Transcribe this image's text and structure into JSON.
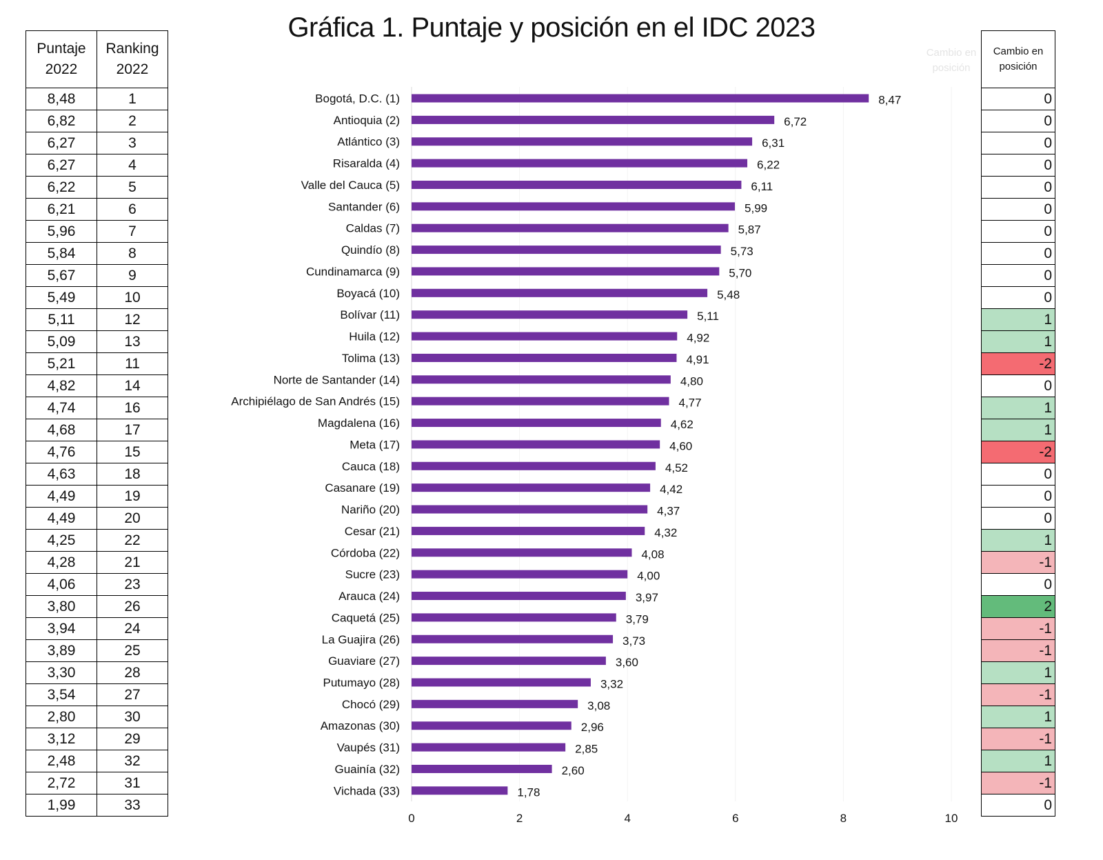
{
  "title": "Gráfica 1. Puntaje y posición en el IDC 2023",
  "left_table": {
    "header_score": [
      "Puntaje",
      "2022"
    ],
    "header_rank": [
      "Ranking",
      "2022"
    ],
    "rows": [
      [
        "8,48",
        "1"
      ],
      [
        "6,82",
        "2"
      ],
      [
        "6,27",
        "3"
      ],
      [
        "6,27",
        "4"
      ],
      [
        "6,22",
        "5"
      ],
      [
        "6,21",
        "6"
      ],
      [
        "5,96",
        "7"
      ],
      [
        "5,84",
        "8"
      ],
      [
        "5,67",
        "9"
      ],
      [
        "5,49",
        "10"
      ],
      [
        "5,11",
        "12"
      ],
      [
        "5,09",
        "13"
      ],
      [
        "5,21",
        "11"
      ],
      [
        "4,82",
        "14"
      ],
      [
        "4,74",
        "16"
      ],
      [
        "4,68",
        "17"
      ],
      [
        "4,76",
        "15"
      ],
      [
        "4,63",
        "18"
      ],
      [
        "4,49",
        "19"
      ],
      [
        "4,49",
        "20"
      ],
      [
        "4,25",
        "22"
      ],
      [
        "4,28",
        "21"
      ],
      [
        "4,06",
        "23"
      ],
      [
        "3,80",
        "26"
      ],
      [
        "3,94",
        "24"
      ],
      [
        "3,89",
        "25"
      ],
      [
        "3,30",
        "28"
      ],
      [
        "3,54",
        "27"
      ],
      [
        "2,80",
        "30"
      ],
      [
        "3,12",
        "29"
      ],
      [
        "2,48",
        "32"
      ],
      [
        "2,72",
        "31"
      ],
      [
        "1,99",
        "33"
      ]
    ]
  },
  "right_table": {
    "header": [
      "Cambio en",
      "posición"
    ],
    "ghost_header": [
      "Cambio en",
      "posición"
    ],
    "rows": [
      "0",
      "0",
      "0",
      "0",
      "0",
      "0",
      "0",
      "0",
      "0",
      "0",
      "1",
      "1",
      "-2",
      "0",
      "1",
      "1",
      "-2",
      "0",
      "0",
      "0",
      "1",
      "-1",
      "0",
      "2",
      "-1",
      "-1",
      "1",
      "-1",
      "1",
      "-1",
      "1",
      "-1",
      "0"
    ]
  },
  "colors": {
    "bar": "#7030a0",
    "neutral": "#ffffff",
    "plus_one": "#b6e0c3",
    "plus_two": "#63bb7b",
    "minus_one": "#f4b5b9",
    "minus_two": "#f46b72",
    "gridline": "#f2f2f2"
  },
  "chart_data": {
    "type": "bar",
    "orientation": "horizontal",
    "title": "Gráfica 1. Puntaje y posición en el IDC 2023",
    "xlabel": "",
    "ylabel": "",
    "xlim": [
      0,
      10
    ],
    "xticks": [
      "0",
      "2",
      "4",
      "6",
      "8",
      "10"
    ],
    "categories": [
      "Bogotá, D.C. (1)",
      "Antioquia (2)",
      "Atlántico (3)",
      "Risaralda (4)",
      "Valle del Cauca (5)",
      "Santander (6)",
      "Caldas (7)",
      "Quindío (8)",
      "Cundinamarca (9)",
      "Boyacá (10)",
      "Bolívar (11)",
      "Huila (12)",
      "Tolima (13)",
      "Norte de Santander (14)",
      "Archipiélago de San Andrés (15)",
      "Magdalena (16)",
      "Meta (17)",
      "Cauca (18)",
      "Casanare (19)",
      "Nariño (20)",
      "Cesar (21)",
      "Córdoba (22)",
      "Sucre (23)",
      "Arauca (24)",
      "Caquetá (25)",
      "La Guajira (26)",
      "Guaviare (27)",
      "Putumayo (28)",
      "Chocó (29)",
      "Amazonas (30)",
      "Vaupés (31)",
      "Guainía (32)",
      "Vichada (33)"
    ],
    "values": [
      8.47,
      6.72,
      6.31,
      6.22,
      6.11,
      5.99,
      5.87,
      5.73,
      5.7,
      5.48,
      5.11,
      4.92,
      4.91,
      4.8,
      4.77,
      4.62,
      4.6,
      4.52,
      4.42,
      4.37,
      4.32,
      4.08,
      4.0,
      3.97,
      3.79,
      3.73,
      3.6,
      3.32,
      3.08,
      2.96,
      2.85,
      2.6,
      1.78
    ],
    "value_labels": [
      "8,47",
      "6,72",
      "6,31",
      "6,22",
      "6,11",
      "5,99",
      "5,87",
      "5,73",
      "5,70",
      "5,48",
      "5,11",
      "4,92",
      "4,91",
      "4,80",
      "4,77",
      "4,62",
      "4,60",
      "4,52",
      "4,42",
      "4,37",
      "4,32",
      "4,08",
      "4,00",
      "3,97",
      "3,79",
      "3,73",
      "3,60",
      "3,32",
      "3,08",
      "2,96",
      "2,85",
      "2,60",
      "1,78"
    ]
  }
}
